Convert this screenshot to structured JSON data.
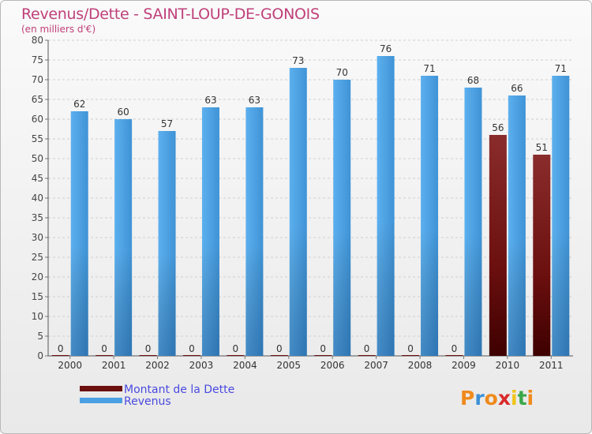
{
  "header": {
    "title": "Revenus/Dette - SAINT-LOUP-DE-GONOIS",
    "subtitle": "(en milliers d'€)"
  },
  "colors": {
    "title": "#c0407a",
    "dette": "#6b0f0f",
    "revenus": "#4aa0e2",
    "grid": "#cccccc",
    "legend_text": "#4a4ae0"
  },
  "chart_data": {
    "type": "bar",
    "title": "Revenus/Dette - SAINT-LOUP-DE-GONOIS",
    "ylabel": "(en milliers d'€)",
    "xlabel": "",
    "ylim": [
      0,
      80
    ],
    "ytick_step": 5,
    "categories": [
      "2000",
      "2001",
      "2002",
      "2003",
      "2004",
      "2005",
      "2006",
      "2007",
      "2008",
      "2009",
      "2010",
      "2011"
    ],
    "series": [
      {
        "name": "Montant de la Dette",
        "color": "#6b0f0f",
        "values": [
          0,
          0,
          0,
          0,
          0,
          0,
          0,
          0,
          0,
          0,
          56,
          51
        ]
      },
      {
        "name": "Revenus",
        "color": "#4aa0e2",
        "values": [
          62,
          60,
          57,
          63,
          63,
          73,
          70,
          76,
          71,
          68,
          66,
          71
        ]
      }
    ],
    "legend_position": "bottom-left"
  },
  "legend": {
    "items": [
      {
        "label": "Montant de la Dette",
        "color": "#6b0f0f"
      },
      {
        "label": "Revenus",
        "color": "#4aa0e2"
      }
    ]
  },
  "logo": {
    "letters": [
      "P",
      "r",
      "o",
      "x",
      "i",
      "t",
      "i"
    ],
    "colors": [
      "#f08a1c",
      "#3b8fd6",
      "#f08a1c",
      "#d92b2b",
      "#f0c419",
      "#39a84a",
      "#f08a1c"
    ]
  }
}
